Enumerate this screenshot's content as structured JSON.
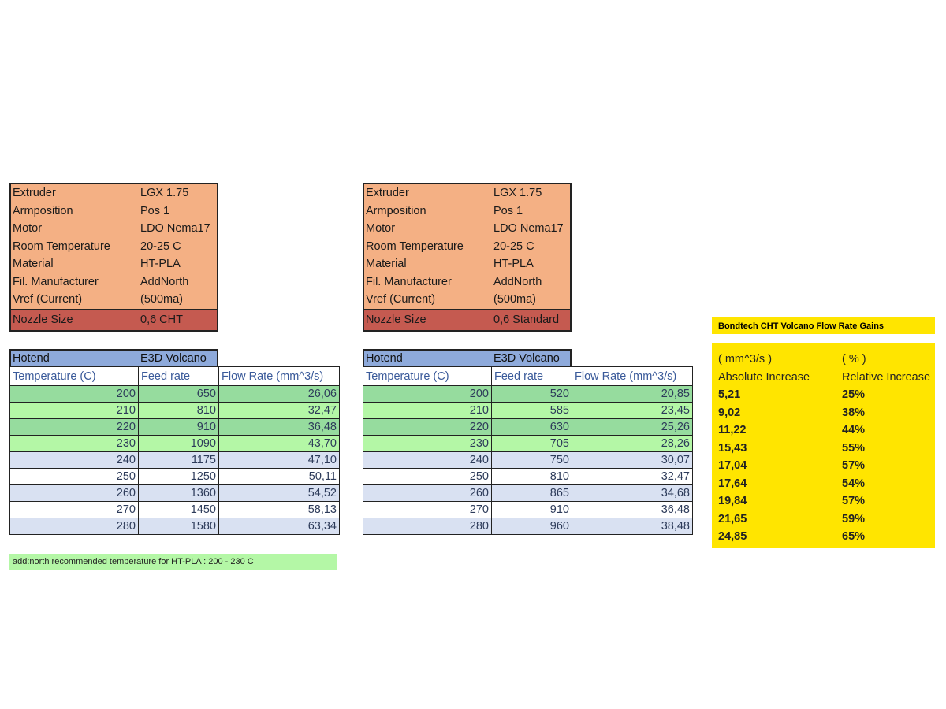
{
  "setups": [
    {
      "info": [
        [
          "Extruder",
          "LGX 1.75"
        ],
        [
          "Armposition",
          "Pos 1"
        ],
        [
          "Motor",
          "LDO Nema17"
        ],
        [
          "Room Temperature",
          "20-25 C"
        ],
        [
          "Material",
          "HT-PLA"
        ],
        [
          "Fil. Manufacturer",
          "AddNorth"
        ],
        [
          "Vref (Current)",
          "(500ma)"
        ]
      ],
      "nozzle": [
        "Nozzle Size",
        "0,6 CHT"
      ],
      "hotend": [
        "Hotend",
        "E3D Volcano"
      ],
      "headers": [
        "Temperature (C)",
        "Feed rate",
        "Flow Rate (mm^3/s)"
      ],
      "rows": [
        [
          "200",
          "650",
          "26,06"
        ],
        [
          "210",
          "810",
          "32,47"
        ],
        [
          "220",
          "910",
          "36,48"
        ],
        [
          "230",
          "1090",
          "43,70"
        ],
        [
          "240",
          "1175",
          "47,10"
        ],
        [
          "250",
          "1250",
          "50,11"
        ],
        [
          "260",
          "1360",
          "54,52"
        ],
        [
          "270",
          "1450",
          "58,13"
        ],
        [
          "280",
          "1580",
          "63,34"
        ]
      ]
    },
    {
      "info": [
        [
          "Extruder",
          "LGX 1.75"
        ],
        [
          "Armposition",
          "Pos 1"
        ],
        [
          "Motor",
          "LDO Nema17"
        ],
        [
          "Room Temperature",
          "20-25 C"
        ],
        [
          "Material",
          "HT-PLA"
        ],
        [
          "Fil. Manufacturer",
          "AddNorth"
        ],
        [
          "Vref (Current)",
          "(500ma)"
        ]
      ],
      "nozzle": [
        "Nozzle Size",
        "0,6 Standard"
      ],
      "hotend": [
        "Hotend",
        "E3D Volcano"
      ],
      "headers": [
        "Temperature (C)",
        "Feed rate",
        "Flow Rate (mm^3/s)"
      ],
      "rows": [
        [
          "200",
          "520",
          "20,85"
        ],
        [
          "210",
          "585",
          "23,45"
        ],
        [
          "220",
          "630",
          "25,26"
        ],
        [
          "230",
          "705",
          "28,26"
        ],
        [
          "240",
          "750",
          "30,07"
        ],
        [
          "250",
          "810",
          "32,47"
        ],
        [
          "260",
          "865",
          "34,68"
        ],
        [
          "270",
          "910",
          "36,48"
        ],
        [
          "280",
          "960",
          "38,48"
        ]
      ]
    }
  ],
  "note": "add:north recommended temperature for HT-PLA : 200 - 230 C",
  "gains": {
    "title": "Bondtech CHT Volcano Flow Rate Gains",
    "units": [
      "( mm^3/s )",
      "( % )"
    ],
    "headers": [
      "Absolute Increase",
      "Relative Increase"
    ],
    "rows": [
      [
        "5,21",
        "25%"
      ],
      [
        "9,02",
        "38%"
      ],
      [
        "11,22",
        "44%"
      ],
      [
        "15,43",
        "55%"
      ],
      [
        "17,04",
        "57%"
      ],
      [
        "17,64",
        "54%"
      ],
      [
        "19,84",
        "57%"
      ],
      [
        "21,65",
        "59%"
      ],
      [
        "24,85",
        "65%"
      ]
    ]
  },
  "colors": {
    "info_bg": "#f4b084",
    "nozzle_bg": "#c55a50",
    "hotend_bg": "#8eaadb",
    "green_dark": "#96dc9e",
    "green_light": "#b4f7a6",
    "blue_light": "#d9e1f2",
    "gains_bg": "#ffe500"
  }
}
